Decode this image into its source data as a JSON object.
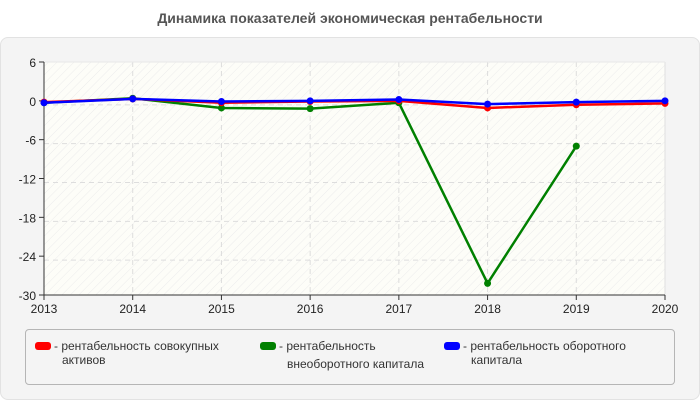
{
  "chart_data": {
    "type": "line",
    "title": "Динамика показателей экономическая рентабельности",
    "xlabel": "",
    "ylabel": "",
    "x": [
      "2013",
      "2014",
      "2015",
      "2016",
      "2017",
      "2018",
      "2019",
      "2020"
    ],
    "ylim": [
      -30,
      6
    ],
    "yticks": [
      6,
      0,
      -6,
      -12,
      -18,
      -24,
      -30
    ],
    "grid": true,
    "legend_position": "bottom",
    "series": [
      {
        "name": "рентабельность совокупных активов",
        "color": "#ff0000",
        "values": [
          -0.2,
          0.3,
          -0.3,
          -0.1,
          0.0,
          -1.1,
          -0.6,
          -0.4
        ]
      },
      {
        "name": "рентабельность внеоборотного капитала",
        "color": "#008000",
        "values": [
          -0.3,
          0.4,
          -1.1,
          -1.2,
          -0.3,
          -28.2,
          -7.0,
          null
        ]
      },
      {
        "name": "рентабельность оборотного капитала",
        "color": "#0000ff",
        "values": [
          -0.3,
          0.3,
          -0.1,
          0.0,
          0.2,
          -0.5,
          -0.2,
          0.0
        ]
      }
    ]
  },
  "legend": {
    "items": [
      {
        "line1": "- рентабельность совокупных",
        "line2": "активов",
        "color": "#ff0000"
      },
      {
        "line1": "- рентабельность",
        "line2": "внеоборотного капитала",
        "color": "#008000"
      },
      {
        "line1": "- рентабельность оборотного",
        "line2": "капитала",
        "color": "#0000ff"
      }
    ]
  }
}
